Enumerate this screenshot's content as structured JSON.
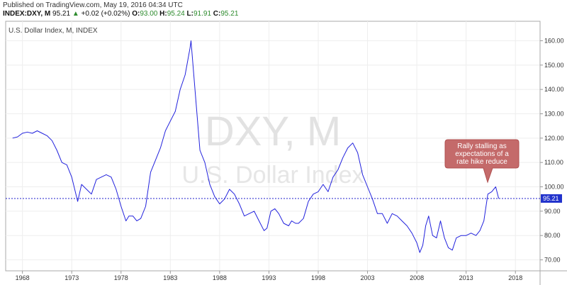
{
  "header": {
    "published": "Published on TradingView.com, May 19, 2016 04:34 UTC",
    "symbol": "INDEX:DXY, M",
    "price": "95.21",
    "arrow": "▲",
    "change": "+0.02 (+0.02%)",
    "o_label": "O:",
    "o_value": "93.00",
    "h_label": "H:",
    "h_value": "95.24",
    "l_label": "L:",
    "l_value": "91.91",
    "c_label": "C:",
    "c_value": "95.21"
  },
  "colors": {
    "series": "#2222dd",
    "last_price_line": "#2222cc",
    "last_price_badge": "#2233cc",
    "callout_fill": "#c46a6a",
    "callout_stroke": "#b05050",
    "grid": "#eeeeee",
    "up": "#2e8b2e"
  },
  "chart_data": {
    "type": "line",
    "title": "U.S. Dollar Index, M, INDEX",
    "watermark_symbol": "DXY, M",
    "watermark_name": "U.S. Dollar Index",
    "xlabel": "",
    "ylabel": "",
    "x_ticks": [
      "1968",
      "1973",
      "1978",
      "1983",
      "1988",
      "1993",
      "1998",
      "2003",
      "2008",
      "2013",
      "2018"
    ],
    "y_ticks": [
      "160.00",
      "150.00",
      "140.00",
      "130.00",
      "120.00",
      "110.00",
      "100.00",
      "90.00",
      "80.00",
      "70.00"
    ],
    "xlim": [
      1966.3,
      2020.5
    ],
    "ylim": [
      65.5,
      168
    ],
    "grid": true,
    "last_value": "95.21",
    "annotation": "Rally stalling as expectations of a rate hike reduce",
    "annotation_lines": [
      "Rally stalling as",
      "expectations of a",
      "rate hike reduce"
    ],
    "series": [
      {
        "x": [
          1967.0,
          1967.5,
          1968.0,
          1968.5,
          1969.0,
          1969.5,
          1970.0,
          1970.5,
          1971.0,
          1971.5,
          1972.0,
          1972.5,
          1973.0,
          1973.3,
          1973.6,
          1974.0,
          1974.5,
          1975.0,
          1975.5,
          1976.0,
          1976.5,
          1977.0,
          1977.5,
          1978.0,
          1978.5,
          1978.8,
          1979.2,
          1979.6,
          1980.0,
          1980.5,
          1981.0,
          1981.5,
          1982.0,
          1982.5,
          1983.0,
          1983.5,
          1984.0,
          1984.5,
          1985.0,
          1985.1,
          1985.5,
          1986.0,
          1986.5,
          1987.0,
          1987.5,
          1988.0,
          1988.5,
          1989.0,
          1989.5,
          1990.0,
          1990.5,
          1991.0,
          1991.5,
          1992.0,
          1992.5,
          1992.8,
          1993.2,
          1993.6,
          1994.0,
          1994.5,
          1995.0,
          1995.3,
          1995.7,
          1996.0,
          1996.5,
          1997.0,
          1997.5,
          1998.0,
          1998.5,
          1999.0,
          1999.5,
          2000.0,
          2000.5,
          2001.0,
          2001.5,
          2002.0,
          2002.5,
          2003.0,
          2003.5,
          2004.0,
          2004.5,
          2005.0,
          2005.5,
          2006.0,
          2006.5,
          2007.0,
          2007.5,
          2008.0,
          2008.3,
          2008.6,
          2008.9,
          2009.2,
          2009.6,
          2010.0,
          2010.4,
          2010.8,
          2011.2,
          2011.6,
          2012.0,
          2012.5,
          2013.0,
          2013.5,
          2014.0,
          2014.4,
          2014.8,
          2015.2,
          2015.6,
          2016.0,
          2016.3
        ],
        "y": [
          120,
          120.5,
          122,
          122.5,
          122,
          123,
          122,
          121,
          119,
          115,
          110,
          109,
          104,
          99,
          94,
          101,
          99,
          97,
          103,
          104,
          105,
          104,
          99,
          92,
          86,
          88,
          88,
          86,
          87,
          92,
          106,
          111,
          116,
          123,
          127,
          131,
          140,
          146,
          157,
          160,
          140,
          115,
          110,
          101,
          96,
          93,
          95,
          99,
          97,
          93,
          88,
          89,
          90,
          86,
          82,
          83,
          90,
          91,
          89,
          85,
          84,
          86,
          85,
          85,
          87,
          94,
          97,
          98,
          101,
          98,
          104,
          107,
          112,
          116,
          118,
          114,
          105,
          100,
          95,
          89,
          89,
          85,
          89,
          88,
          86,
          84,
          81,
          77,
          73,
          76,
          84,
          88,
          80,
          79,
          86,
          79,
          75,
          74,
          79,
          80,
          80,
          81,
          80,
          82,
          86,
          97,
          98,
          100,
          95.21
        ]
      }
    ]
  }
}
